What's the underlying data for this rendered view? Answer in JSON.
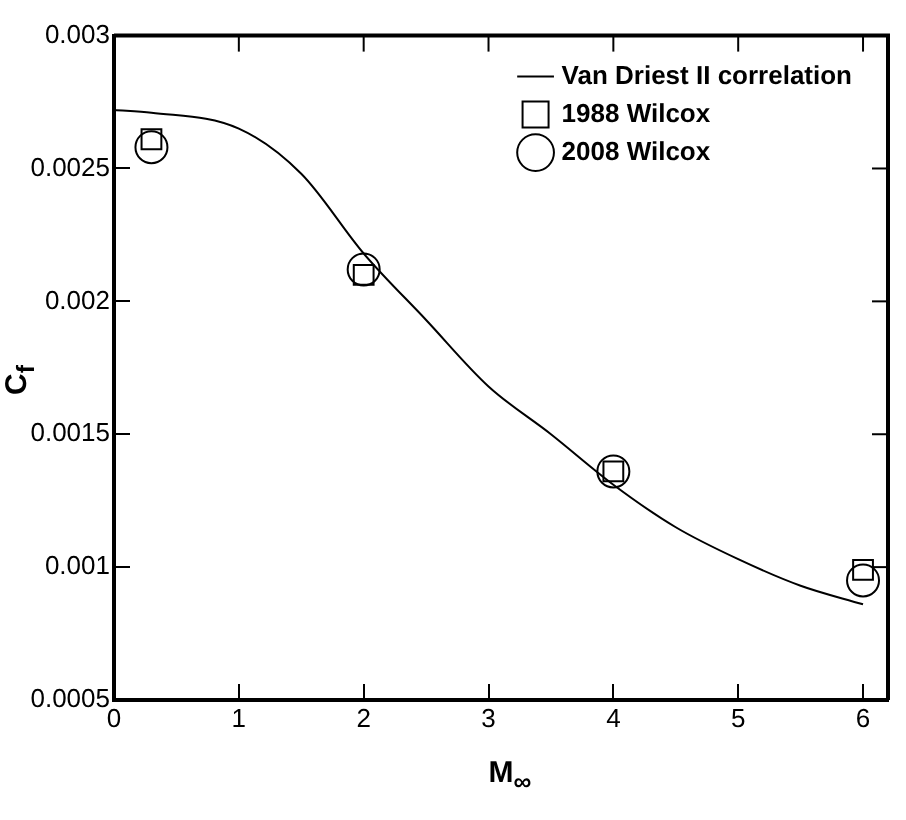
{
  "chart_data": {
    "type": "scatter",
    "xlabel": "M$_{∞}$",
    "ylabel": "C$_{f}$",
    "xlim": [
      0,
      6.2
    ],
    "xticks": [
      0,
      1,
      2,
      3,
      4,
      5,
      6
    ],
    "ylim": [
      0.0005,
      0.003
    ],
    "yticks": [
      0.0005,
      0.001,
      0.0015,
      0.002,
      0.0025,
      0.003
    ],
    "grid": false,
    "legend": "top right",
    "series": [
      {
        "name": "Van Driest II correlation",
        "type": "line",
        "color": "#000000",
        "marker": "none",
        "line_style": "solid",
        "x": [
          0,
          0.3,
          1,
          1.5,
          2,
          2.5,
          3,
          3.5,
          4,
          4.5,
          5,
          5.5,
          6
        ],
        "values": [
          0.00272,
          0.00271,
          0.00265,
          0.00248,
          0.00218,
          0.00193,
          0.00168,
          0.0015,
          0.00131,
          0.00115,
          0.00103,
          0.00093,
          0.00086
        ]
      },
      {
        "name": "1988 Wilcox",
        "color": "#000000",
        "marker": "square",
        "x": [
          0.3,
          2,
          4,
          6
        ],
        "values": [
          0.00261,
          0.0021,
          0.00136,
          0.00099
        ]
      },
      {
        "name": "2008 Wilcox",
        "color": "#000000",
        "marker": "circle",
        "x": [
          0.3,
          2,
          4,
          6
        ],
        "values": [
          0.00258,
          0.00212,
          0.00136,
          0.00095
        ]
      }
    ]
  }
}
